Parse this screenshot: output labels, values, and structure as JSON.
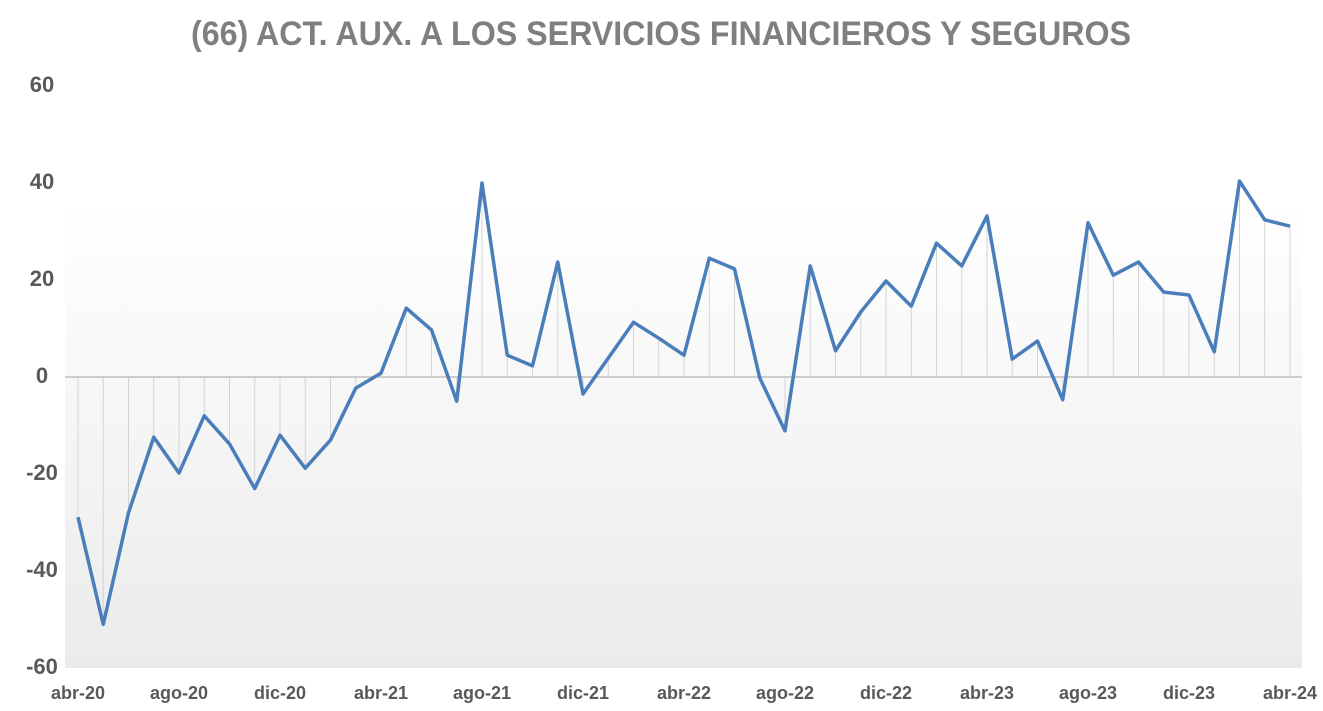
{
  "chart_data": {
    "type": "line",
    "title": "(66) ACT. AUX. A LOS SERVICIOS FINANCIEROS Y SEGUROS",
    "categories": [
      "abr-20",
      null,
      null,
      null,
      "ago-20",
      null,
      null,
      null,
      "dic-20",
      null,
      null,
      null,
      "abr-21",
      null,
      null,
      null,
      "ago-21",
      null,
      null,
      null,
      "dic-21",
      null,
      null,
      null,
      "abr-22",
      null,
      null,
      null,
      "ago-22",
      null,
      null,
      null,
      "dic-22",
      null,
      null,
      null,
      "abr-23",
      null,
      null,
      null,
      "ago-23",
      null,
      null,
      null,
      "dic-23",
      null,
      null,
      null,
      "abr-24"
    ],
    "values": [
      -28.9,
      -51,
      -28,
      -12.4,
      -19.8,
      -8,
      -13.8,
      -23,
      -12,
      -18.8,
      -13,
      -2.3,
      0.8,
      14.2,
      9.7,
      -5,
      40,
      4.5,
      2.3,
      23.7,
      -3.5,
      3.9,
      11.3,
      8,
      4.5,
      24.5,
      22.3,
      -0.2,
      -11.1,
      22.9,
      5.4,
      13.4,
      19.8,
      14.6,
      27.6,
      22.9,
      33.2,
      3.7,
      7.4,
      -4.7,
      31.8,
      21,
      23.7,
      17.5,
      16.9,
      5.2,
      40.4,
      32.4,
      31.1
    ],
    "color": "#4a7ebb",
    "ylim": [
      -60,
      60
    ],
    "yticks": [
      -60,
      -40,
      -20,
      0,
      20,
      40,
      60
    ],
    "grid": false
  }
}
